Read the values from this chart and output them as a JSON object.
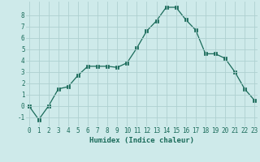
{
  "x": [
    0,
    1,
    2,
    3,
    4,
    5,
    6,
    7,
    8,
    9,
    10,
    11,
    12,
    13,
    14,
    15,
    16,
    17,
    18,
    19,
    20,
    21,
    22,
    23
  ],
  "y": [
    0.0,
    -1.2,
    -0.0,
    1.5,
    1.7,
    2.7,
    3.5,
    3.5,
    3.5,
    3.4,
    3.8,
    5.1,
    6.6,
    7.5,
    8.7,
    8.7,
    7.6,
    6.7,
    4.6,
    4.6,
    4.2,
    3.0,
    1.5,
    0.5
  ],
  "xlabel": "Humidex (Indice chaleur)",
  "ylim": [
    -1.8,
    9.2
  ],
  "xlim": [
    -0.3,
    23.3
  ],
  "bg_color": "#ceeaea",
  "grid_color": "#aed0d0",
  "line_color": "#1a6b5a",
  "marker_color": "#1a6b5a",
  "label_color": "#1a6b5a",
  "yticks": [
    -1,
    0,
    1,
    2,
    3,
    4,
    5,
    6,
    7,
    8
  ],
  "xticks": [
    0,
    1,
    2,
    3,
    4,
    5,
    6,
    7,
    8,
    9,
    10,
    11,
    12,
    13,
    14,
    15,
    16,
    17,
    18,
    19,
    20,
    21,
    22,
    23
  ],
  "tick_fontsize": 5.5,
  "xlabel_fontsize": 6.5
}
